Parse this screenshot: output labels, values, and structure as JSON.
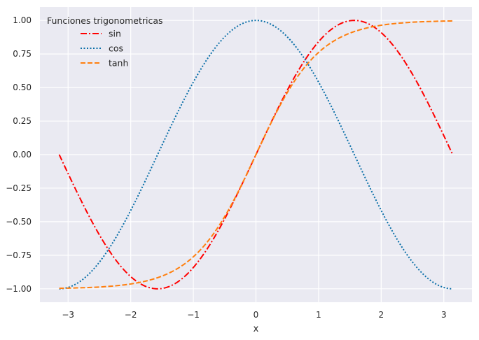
{
  "chart_data": {
    "type": "line",
    "title": "",
    "xlabel": "x",
    "ylabel": "",
    "xlim": [
      -3.45,
      3.45
    ],
    "ylim": [
      -1.1,
      1.1
    ],
    "xticks": [
      -3,
      -2,
      -1,
      0,
      1,
      2,
      3
    ],
    "xtick_labels": [
      "−3",
      "−2",
      "−1",
      "0",
      "1",
      "2",
      "3"
    ],
    "yticks": [
      -1.0,
      -0.75,
      -0.5,
      -0.25,
      0.0,
      0.25,
      0.5,
      0.75,
      1.0
    ],
    "ytick_labels": [
      "−1.00",
      "−0.75",
      "−0.50",
      "−0.25",
      "0.00",
      "0.25",
      "0.50",
      "0.75",
      "1.00"
    ],
    "grid": true,
    "legend": {
      "title": "Funciones trigonometricas",
      "placement": "top-left"
    },
    "x": [
      -3.1416,
      -2.8274,
      -2.5133,
      -2.1991,
      -1.885,
      -1.5708,
      -1.2566,
      -0.9425,
      -0.6283,
      -0.3142,
      0.0,
      0.3142,
      0.6283,
      0.9425,
      1.2566,
      1.5708,
      1.885,
      2.1991,
      2.5133,
      2.8274,
      3.1416
    ],
    "series": [
      {
        "name": "sin",
        "color": "#ff0000",
        "dash": "dashdot",
        "values": [
          0.0,
          -0.309,
          -0.5878,
          -0.809,
          -0.9511,
          -1.0,
          -0.9511,
          -0.809,
          -0.5878,
          -0.309,
          0.0,
          0.309,
          0.5878,
          0.809,
          0.9511,
          1.0,
          0.9511,
          0.809,
          0.5878,
          0.309,
          0.0
        ]
      },
      {
        "name": "cos",
        "color": "#0a6fa8",
        "dash": "dotted",
        "values": [
          -1.0,
          -0.9511,
          -0.809,
          -0.5878,
          -0.309,
          0.0,
          0.309,
          0.5878,
          0.809,
          0.9511,
          1.0,
          0.9511,
          0.809,
          0.5878,
          0.309,
          0.0,
          -0.309,
          -0.5878,
          -0.809,
          -0.9511,
          -1.0
        ]
      },
      {
        "name": "tanh",
        "color": "#ff7f0e",
        "dash": "dashed",
        "values": [
          -0.9963,
          -0.993,
          -0.987,
          -0.9757,
          -0.9552,
          -0.9172,
          -0.8503,
          -0.7369,
          -0.5569,
          -0.3042,
          0.0,
          0.3042,
          0.5569,
          0.7369,
          0.8503,
          0.9172,
          0.9552,
          0.9757,
          0.987,
          0.993,
          0.9963
        ]
      }
    ]
  }
}
